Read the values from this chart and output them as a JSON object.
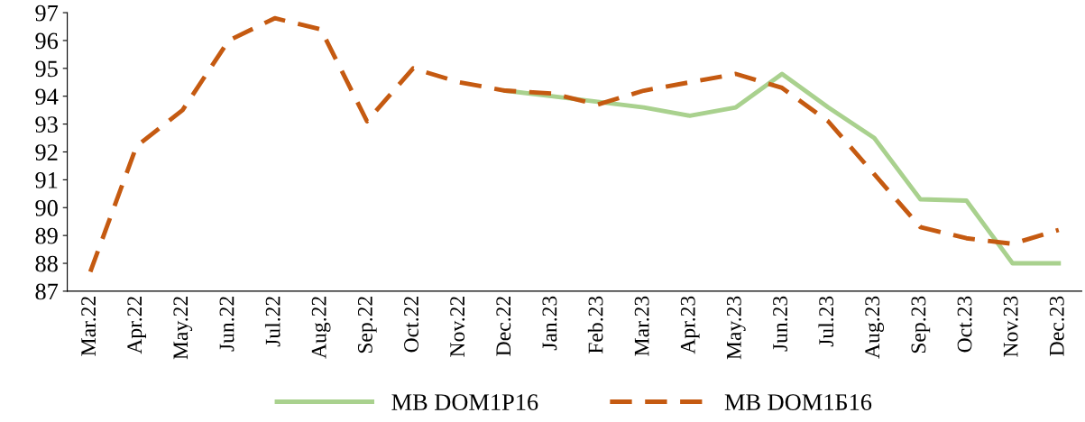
{
  "chart_data": {
    "type": "line",
    "categories": [
      "Mar.22",
      "Apr.22",
      "May.22",
      "Jun.22",
      "Jul.22",
      "Aug.22",
      "Sep.22",
      "Oct.22",
      "Nov.22",
      "Dec.22",
      "Jan.23",
      "Feb.23",
      "Mar.23",
      "Apr.23",
      "May.23",
      "Jun.23",
      "Jul.23",
      "Aug.23",
      "Sep.23",
      "Oct.23",
      "Nov.23",
      "Dec.23"
    ],
    "series": [
      {
        "name": "MB DOM1P16",
        "color": "#a9d18e",
        "line_style": "solid",
        "values": [
          null,
          null,
          null,
          null,
          null,
          null,
          null,
          null,
          null,
          94.2,
          94.0,
          93.8,
          93.6,
          93.3,
          93.6,
          94.8,
          93.6,
          92.5,
          90.3,
          90.25,
          88.0,
          88.0
        ]
      },
      {
        "name": "MB DOM1Б16",
        "color": "#c55a11",
        "line_style": "dashed",
        "values": [
          87.7,
          92.2,
          93.5,
          96.0,
          96.8,
          96.4,
          93.1,
          95.0,
          94.5,
          94.2,
          94.1,
          93.7,
          94.2,
          94.5,
          94.8,
          94.3,
          93.1,
          91.2,
          89.3,
          88.9,
          88.7,
          89.2
        ]
      }
    ],
    "ylim": [
      87,
      97
    ],
    "yticks": [
      87,
      88,
      89,
      90,
      91,
      92,
      93,
      94,
      95,
      96,
      97
    ],
    "grid": false,
    "legend": "bottom",
    "marker": "none"
  }
}
